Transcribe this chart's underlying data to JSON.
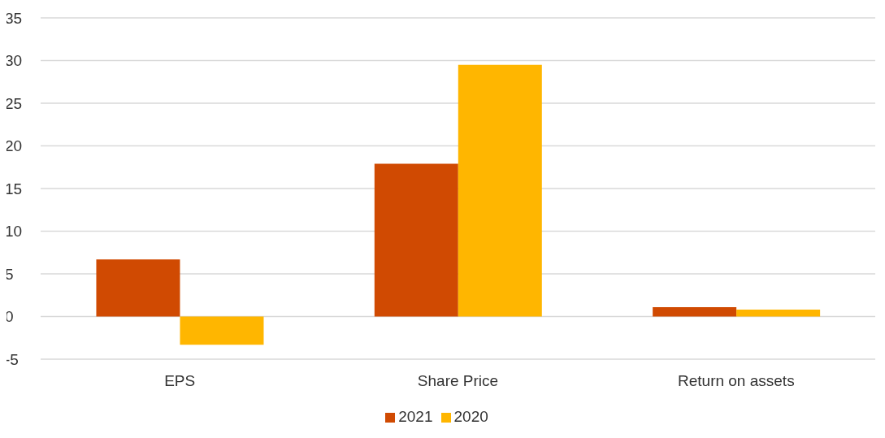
{
  "chart_data": {
    "type": "bar",
    "categories": [
      "EPS",
      "Share Price",
      "Return on assets"
    ],
    "series": [
      {
        "name": "2021",
        "color": "#d04a02",
        "values": [
          6.7,
          17.9,
          1.1
        ]
      },
      {
        "name": "2020",
        "color": "#ffb600",
        "values": [
          -3.3,
          29.5,
          0.8
        ]
      }
    ],
    "ylim": [
      -5,
      35
    ],
    "yticks": [
      -5,
      0,
      5,
      10,
      15,
      20,
      25,
      30,
      35
    ],
    "grid": "y",
    "legend": "bottom"
  }
}
